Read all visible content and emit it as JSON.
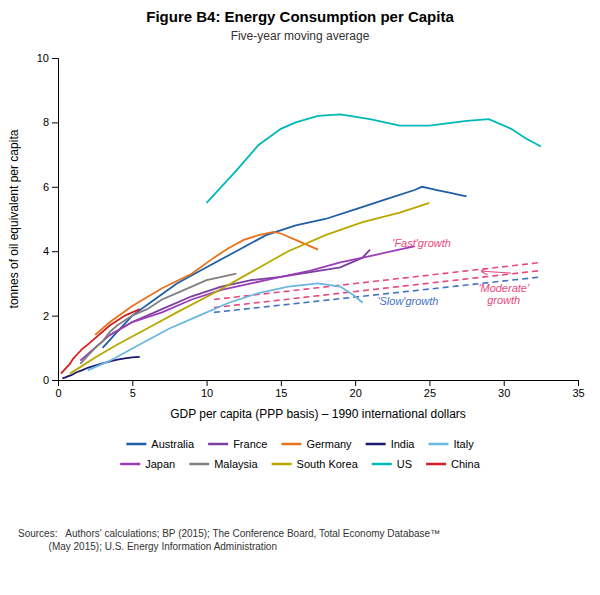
{
  "chart_data": {
    "type": "line",
    "title": "Figure B4: Energy Consumption per Capita",
    "subtitle": "Five-year moving average",
    "xlabel": "GDP per capita (PPP basis) – 1990 international dollars",
    "ylabel": "tonnes of oil equivalent per capita",
    "xlim": [
      0,
      35
    ],
    "ylim": [
      0,
      10
    ],
    "xticks": [
      0,
      5,
      10,
      15,
      20,
      25,
      30,
      35
    ],
    "yticks": [
      0,
      2,
      4,
      6,
      8,
      10
    ],
    "grid": false,
    "legend": "bottom",
    "source_text": "Sources:   Authors' calculations; BP (2015); The Conference Board, Total Economy Database™\n           (May 2015); U.S. Energy Information Administration",
    "series": [
      {
        "color": "#e8487c",
        "line_style": "dashed",
        "x": [
          10.5,
          32.5
        ],
        "values": [
          2.5,
          3.65
        ]
      },
      {
        "color": "#e8487c",
        "line_style": "dashed",
        "x": [
          10.5,
          32.5
        ],
        "values": [
          2.25,
          3.4
        ]
      },
      {
        "color": "#4472c4",
        "line_style": "dashed",
        "x": [
          10.5,
          32.5
        ],
        "values": [
          2.1,
          3.2
        ]
      },
      {
        "name": "Australia",
        "color": "#1f5fa6",
        "x": [
          3.0,
          4.0,
          5.0,
          6.5,
          8.0,
          10.0,
          12.0,
          14.0,
          16.0,
          18.0,
          20.0,
          22.0,
          24.0,
          24.5,
          25.0,
          25.5,
          26.0,
          26.5,
          27.0,
          27.5
        ],
        "values": [
          1.0,
          1.5,
          2.0,
          2.5,
          3.0,
          3.5,
          4.0,
          4.5,
          4.8,
          5.0,
          5.3,
          5.6,
          5.9,
          6.0,
          5.95,
          5.9,
          5.85,
          5.8,
          5.75,
          5.7
        ]
      },
      {
        "name": "France",
        "color": "#7b3f9e",
        "x": [
          3.5,
          5.0,
          7.0,
          9.0,
          11.0,
          13.0,
          15.0,
          17.0,
          19.0,
          20.5,
          21.0
        ],
        "values": [
          1.4,
          1.8,
          2.2,
          2.6,
          2.9,
          3.1,
          3.2,
          3.35,
          3.5,
          3.8,
          4.05
        ]
      },
      {
        "name": "Germany",
        "color": "#e8721c",
        "x": [
          2.5,
          3.5,
          5.0,
          7.0,
          9.0,
          10.5,
          11.5,
          12.5,
          13.5,
          14.5,
          15.0,
          15.5,
          16.0,
          16.5,
          17.0,
          17.5
        ],
        "values": [
          1.4,
          1.8,
          2.3,
          2.85,
          3.3,
          3.8,
          4.1,
          4.35,
          4.5,
          4.6,
          4.55,
          4.45,
          4.35,
          4.25,
          4.15,
          4.05
        ]
      },
      {
        "name": "India",
        "color": "#1a1a6e",
        "x": [
          0.3,
          0.5,
          0.7,
          0.9,
          1.1,
          1.3,
          1.6,
          2.0,
          2.5,
          3.0,
          3.5,
          4.0,
          4.5,
          5.0,
          5.5
        ],
        "values": [
          0.05,
          0.08,
          0.12,
          0.15,
          0.2,
          0.25,
          0.3,
          0.38,
          0.45,
          0.52,
          0.58,
          0.63,
          0.67,
          0.7,
          0.72
        ]
      },
      {
        "name": "Italy",
        "color": "#6ab7e0",
        "x": [
          2.0,
          3.5,
          5.5,
          7.5,
          9.5,
          11.5,
          13.5,
          15.5,
          17.5,
          19.0,
          20.0,
          20.5
        ],
        "values": [
          0.3,
          0.6,
          1.1,
          1.6,
          2.0,
          2.4,
          2.7,
          2.9,
          3.0,
          2.9,
          2.6,
          2.4
        ]
      },
      {
        "name": "Japan",
        "color": "#9b3db8",
        "x": [
          1.5,
          2.5,
          3.5,
          5.0,
          7.0,
          9.0,
          11.0,
          13.0,
          15.0,
          17.0,
          19.0,
          21.0,
          22.5,
          23.5,
          24.0
        ],
        "values": [
          0.6,
          1.0,
          1.4,
          1.8,
          2.1,
          2.5,
          2.8,
          3.0,
          3.2,
          3.4,
          3.65,
          3.85,
          4.0,
          4.1,
          4.15
        ]
      },
      {
        "name": "Malaysia",
        "color": "#808080",
        "x": [
          1.5,
          2.0,
          2.5,
          3.0,
          3.5,
          4.0,
          5.0,
          6.0,
          7.0,
          8.0,
          9.0,
          10.0,
          11.0,
          12.0
        ],
        "values": [
          0.5,
          0.75,
          1.0,
          1.2,
          1.5,
          1.7,
          2.0,
          2.2,
          2.5,
          2.7,
          2.9,
          3.1,
          3.2,
          3.3
        ]
      },
      {
        "name": "South Korea",
        "color": "#b8a800",
        "x": [
          0.8,
          1.5,
          2.5,
          4.0,
          6.0,
          8.0,
          10.5,
          13.0,
          15.5,
          18.0,
          20.5,
          23.0,
          25.0
        ],
        "values": [
          0.2,
          0.4,
          0.7,
          1.1,
          1.6,
          2.1,
          2.7,
          3.35,
          4.0,
          4.5,
          4.9,
          5.2,
          5.5
        ]
      },
      {
        "name": "US",
        "color": "#00b8b8",
        "x": [
          10.0,
          12.0,
          13.5,
          15.0,
          16.0,
          17.5,
          19.0,
          21.0,
          23.0,
          25.0,
          27.5,
          29.0,
          30.5,
          31.5,
          32.5
        ],
        "values": [
          5.5,
          6.5,
          7.3,
          7.8,
          8.0,
          8.2,
          8.25,
          8.1,
          7.9,
          7.9,
          8.05,
          8.1,
          7.8,
          7.5,
          7.25
        ]
      },
      {
        "name": "China",
        "color": "#d42020",
        "x": [
          0.2,
          0.5,
          0.8,
          1.0,
          1.3,
          1.6,
          2.0,
          2.5,
          3.0,
          3.5,
          4.0,
          4.5,
          5.0,
          5.5
        ],
        "values": [
          0.2,
          0.35,
          0.5,
          0.65,
          0.8,
          0.95,
          1.1,
          1.3,
          1.5,
          1.7,
          1.85,
          2.0,
          2.1,
          2.2
        ]
      }
    ],
    "annotations": [
      {
        "text": "'Fast'growth",
        "x": 22.5,
        "y": 4.05,
        "color": "#e8487c"
      },
      {
        "text": "'Slow'growth",
        "x": 21.5,
        "y": 2.65,
        "color": "#4472c4"
      },
      {
        "text": "'Moderate'\ngrowth",
        "x": 30.0,
        "y": 3.05,
        "color": "#e8487c"
      }
    ],
    "arrows": [
      {
        "x_start": 30.5,
        "y_start": 3.32,
        "x_end": 28.5,
        "y_end": 3.38,
        "color": "#e8487c"
      }
    ]
  }
}
